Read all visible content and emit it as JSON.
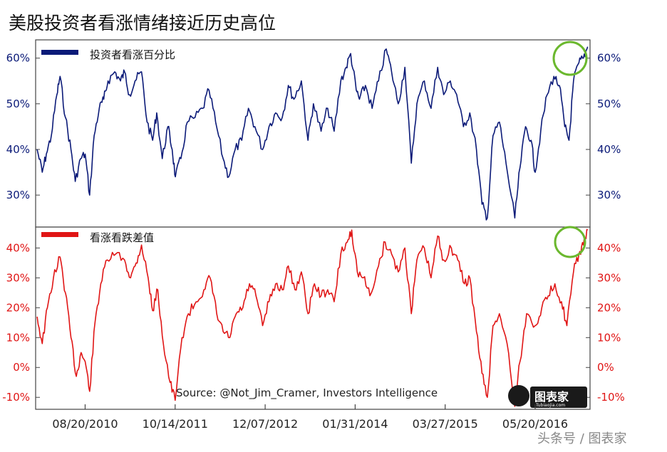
{
  "title": "美股投资者看涨情绪接近历史高位",
  "source": "Source: @Not_Jim_Cramer, Investors Intelligence",
  "watermark": "头条号 / 图表家",
  "logo": {
    "text": "图表家",
    "sub": "Tubiaojia.com"
  },
  "colors": {
    "top_series": "#0b1a78",
    "bottom_series": "#e01515",
    "highlight": "#6bb82e",
    "frame": "#444444"
  },
  "chart_data": [
    {
      "type": "line",
      "series": [
        {
          "name": "投资者看涨百分比",
          "color": "#0b1a78"
        }
      ],
      "ylim": [
        23,
        64
      ],
      "yticks": [
        "30%",
        "40%",
        "50%",
        "60%"
      ],
      "ytick_values": [
        30,
        40,
        50,
        60
      ],
      "x_start": "2010-01-01",
      "x_end": "2017-01-31",
      "points": [
        [
          "2010-01-08",
          40
        ],
        [
          "2010-02-01",
          35
        ],
        [
          "2010-02-20",
          39
        ],
        [
          "2010-03-15",
          43
        ],
        [
          "2010-04-10",
          52
        ],
        [
          "2010-04-25",
          56
        ],
        [
          "2010-05-20",
          47
        ],
        [
          "2010-06-15",
          40
        ],
        [
          "2010-07-05",
          33
        ],
        [
          "2010-07-30",
          38
        ],
        [
          "2010-08-20",
          39
        ],
        [
          "2010-09-10",
          30
        ],
        [
          "2010-10-01",
          43
        ],
        [
          "2010-10-25",
          49
        ],
        [
          "2010-11-15",
          51
        ],
        [
          "2010-12-05",
          55
        ],
        [
          "2011-01-05",
          57
        ],
        [
          "2011-02-01",
          55
        ],
        [
          "2011-02-20",
          57
        ],
        [
          "2011-03-15",
          52
        ],
        [
          "2011-04-10",
          55
        ],
        [
          "2011-05-10",
          57
        ],
        [
          "2011-06-05",
          46
        ],
        [
          "2011-07-01",
          42
        ],
        [
          "2011-07-20",
          48
        ],
        [
          "2011-08-15",
          38
        ],
        [
          "2011-09-10",
          45
        ],
        [
          "2011-09-30",
          40
        ],
        [
          "2011-10-15",
          34
        ],
        [
          "2011-11-10",
          38
        ],
        [
          "2011-12-10",
          46
        ],
        [
          "2012-01-15",
          47
        ],
        [
          "2012-02-20",
          49
        ],
        [
          "2012-03-20",
          53
        ],
        [
          "2012-04-20",
          46
        ],
        [
          "2012-05-25",
          38
        ],
        [
          "2012-06-20",
          34
        ],
        [
          "2012-07-20",
          40
        ],
        [
          "2012-08-20",
          42
        ],
        [
          "2012-09-20",
          49
        ],
        [
          "2012-10-20",
          45
        ],
        [
          "2012-11-25",
          40
        ],
        [
          "2012-12-25",
          45
        ],
        [
          "2013-01-25",
          48
        ],
        [
          "2013-02-25",
          47
        ],
        [
          "2013-03-25",
          54
        ],
        [
          "2013-04-20",
          51
        ],
        [
          "2013-05-25",
          55
        ],
        [
          "2013-06-25",
          42
        ],
        [
          "2013-07-20",
          50
        ],
        [
          "2013-08-25",
          44
        ],
        [
          "2013-09-25",
          49
        ],
        [
          "2013-10-25",
          44
        ],
        [
          "2013-11-25",
          55
        ],
        [
          "2013-12-20",
          58
        ],
        [
          "2014-01-10",
          61
        ],
        [
          "2014-02-05",
          53
        ],
        [
          "2014-02-20",
          51
        ],
        [
          "2014-03-20",
          54
        ],
        [
          "2014-04-20",
          49
        ],
        [
          "2014-05-20",
          55
        ],
        [
          "2014-06-25",
          62
        ],
        [
          "2014-07-20",
          57
        ],
        [
          "2014-08-20",
          50
        ],
        [
          "2014-09-20",
          58
        ],
        [
          "2014-10-20",
          37
        ],
        [
          "2014-11-15",
          50
        ],
        [
          "2014-12-20",
          55
        ],
        [
          "2015-01-20",
          49
        ],
        [
          "2015-02-20",
          58
        ],
        [
          "2015-03-20",
          52
        ],
        [
          "2015-04-20",
          55
        ],
        [
          "2015-05-20",
          52
        ],
        [
          "2015-06-20",
          45
        ],
        [
          "2015-07-20",
          48
        ],
        [
          "2015-08-20",
          40
        ],
        [
          "2015-09-15",
          28
        ],
        [
          "2015-10-10",
          25
        ],
        [
          "2015-11-05",
          43
        ],
        [
          "2015-12-05",
          46
        ],
        [
          "2016-01-05",
          37
        ],
        [
          "2016-02-15",
          25
        ],
        [
          "2016-03-10",
          36
        ],
        [
          "2016-04-05",
          45
        ],
        [
          "2016-05-01",
          42
        ],
        [
          "2016-05-20",
          35
        ],
        [
          "2016-06-15",
          44
        ],
        [
          "2016-07-15",
          52
        ],
        [
          "2016-08-15",
          56
        ],
        [
          "2016-09-10",
          54
        ],
        [
          "2016-10-05",
          45
        ],
        [
          "2016-10-25",
          42
        ],
        [
          "2016-11-15",
          55
        ],
        [
          "2016-12-10",
          59
        ],
        [
          "2016-12-31",
          60
        ],
        [
          "2017-01-20",
          62.5
        ]
      ]
    },
    {
      "type": "line",
      "series": [
        {
          "name": "看涨看跌差值",
          "color": "#e01515"
        }
      ],
      "ylim": [
        -14,
        47
      ],
      "yticks": [
        "-10%",
        "0%",
        "10%",
        "20%",
        "30%",
        "40%"
      ],
      "ytick_values": [
        -10,
        0,
        10,
        20,
        30,
        40
      ],
      "x_start": "2010-01-01",
      "x_end": "2017-01-31",
      "xticks": [
        "08/20/2010",
        "10/14/2011",
        "12/07/2012",
        "01/31/2014",
        "03/27/2015",
        "05/20/2016"
      ],
      "xtick_dates": [
        "2010-08-20",
        "2011-10-14",
        "2012-12-07",
        "2014-01-31",
        "2015-03-27",
        "2016-05-20"
      ],
      "points": [
        [
          "2010-01-08",
          17
        ],
        [
          "2010-02-01",
          8
        ],
        [
          "2010-02-25",
          20
        ],
        [
          "2010-03-25",
          30
        ],
        [
          "2010-04-25",
          37
        ],
        [
          "2010-05-20",
          25
        ],
        [
          "2010-06-15",
          10
        ],
        [
          "2010-07-10",
          -3
        ],
        [
          "2010-08-01",
          5
        ],
        [
          "2010-08-20",
          2
        ],
        [
          "2010-09-10",
          -8
        ],
        [
          "2010-10-05",
          15
        ],
        [
          "2010-11-01",
          28
        ],
        [
          "2010-12-01",
          36
        ],
        [
          "2011-01-10",
          38
        ],
        [
          "2011-02-20",
          36
        ],
        [
          "2011-03-20",
          30
        ],
        [
          "2011-04-15",
          35
        ],
        [
          "2011-05-10",
          41
        ],
        [
          "2011-06-10",
          30
        ],
        [
          "2011-07-01",
          19
        ],
        [
          "2011-07-25",
          26
        ],
        [
          "2011-08-20",
          8
        ],
        [
          "2011-09-20",
          -5
        ],
        [
          "2011-10-14",
          -11
        ],
        [
          "2011-11-15",
          10
        ],
        [
          "2011-12-15",
          18
        ],
        [
          "2012-01-20",
          22
        ],
        [
          "2012-02-25",
          26
        ],
        [
          "2012-03-25",
          30
        ],
        [
          "2012-04-25",
          18
        ],
        [
          "2012-05-25",
          12
        ],
        [
          "2012-06-25",
          10
        ],
        [
          "2012-07-25",
          18
        ],
        [
          "2012-08-25",
          20
        ],
        [
          "2012-09-25",
          28
        ],
        [
          "2012-10-25",
          24
        ],
        [
          "2012-11-25",
          14
        ],
        [
          "2012-12-25",
          22
        ],
        [
          "2013-01-25",
          28
        ],
        [
          "2013-02-25",
          26
        ],
        [
          "2013-03-25",
          34
        ],
        [
          "2013-04-25",
          26
        ],
        [
          "2013-05-25",
          32
        ],
        [
          "2013-06-25",
          18
        ],
        [
          "2013-07-25",
          28
        ],
        [
          "2013-08-25",
          24
        ],
        [
          "2013-09-25",
          26
        ],
        [
          "2013-10-25",
          22
        ],
        [
          "2013-11-25",
          38
        ],
        [
          "2013-12-25",
          42
        ],
        [
          "2014-01-15",
          46
        ],
        [
          "2014-02-10",
          32
        ],
        [
          "2014-03-10",
          30
        ],
        [
          "2014-04-10",
          24
        ],
        [
          "2014-05-20",
          34
        ],
        [
          "2014-06-20",
          42
        ],
        [
          "2014-07-20",
          38
        ],
        [
          "2014-08-20",
          32
        ],
        [
          "2014-09-20",
          40
        ],
        [
          "2014-10-20",
          18
        ],
        [
          "2014-11-15",
          36
        ],
        [
          "2014-12-20",
          40
        ],
        [
          "2015-01-20",
          30
        ],
        [
          "2015-02-20",
          44
        ],
        [
          "2015-03-20",
          36
        ],
        [
          "2015-04-25",
          40
        ],
        [
          "2015-05-25",
          36
        ],
        [
          "2015-06-25",
          28
        ],
        [
          "2015-07-20",
          30
        ],
        [
          "2015-08-20",
          12
        ],
        [
          "2015-09-15",
          -2
        ],
        [
          "2015-10-10",
          -10
        ],
        [
          "2015-11-05",
          14
        ],
        [
          "2015-12-05",
          18
        ],
        [
          "2016-01-10",
          8
        ],
        [
          "2016-02-15",
          -13
        ],
        [
          "2016-03-10",
          2
        ],
        [
          "2016-04-10",
          18
        ],
        [
          "2016-05-20",
          14
        ],
        [
          "2016-06-20",
          20
        ],
        [
          "2016-07-20",
          24
        ],
        [
          "2016-08-20",
          28
        ],
        [
          "2016-09-20",
          22
        ],
        [
          "2016-10-15",
          14
        ],
        [
          "2016-11-15",
          32
        ],
        [
          "2016-12-10",
          38
        ],
        [
          "2016-12-31",
          41
        ],
        [
          "2017-01-20",
          46
        ]
      ]
    }
  ]
}
